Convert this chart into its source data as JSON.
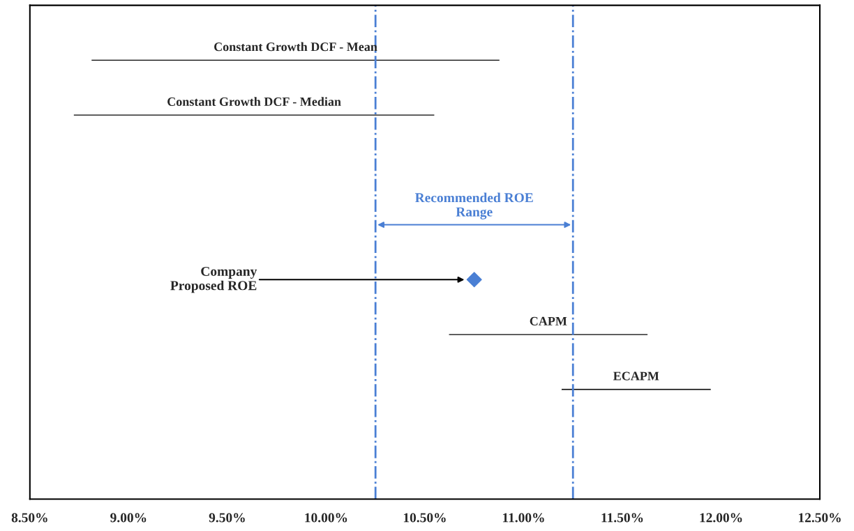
{
  "chart_data": {
    "type": "bar",
    "orientation": "horizontal",
    "categories": [
      "Constant Growth DCF - Mean",
      "Constant Growth DCF - Median",
      null,
      null,
      null,
      "CAPM",
      "ECAPM",
      null
    ],
    "series": [
      {
        "color": "#000000",
        "base": [
          8.81,
          8.72,
          null,
          null,
          null,
          10.62,
          11.19,
          null
        ],
        "values": [
          2.07,
          1.83,
          null,
          null,
          null,
          1.01,
          0.76,
          null
        ]
      },
      {
        "type": "scatter",
        "color": "#4a7fd4",
        "marker": "diamond",
        "values": [
          null,
          null,
          null,
          null,
          10.75,
          null,
          null,
          null
        ]
      }
    ],
    "xlim": [
      8.5,
      12.5
    ],
    "xticks": [
      {
        "value": 8.5,
        "label": "8.50%"
      },
      {
        "value": 9.0,
        "label": "9.00%"
      },
      {
        "value": 9.5,
        "label": "9.50%"
      },
      {
        "value": 10.0,
        "label": "10.00%"
      },
      {
        "value": 10.5,
        "label": "10.50%"
      },
      {
        "value": 11.0,
        "label": "11.00%"
      },
      {
        "value": 11.5,
        "label": "11.50%"
      },
      {
        "value": 12.0,
        "label": "12.00%"
      },
      {
        "value": 12.5,
        "label": "12.50%"
      }
    ],
    "tick_labels": "x",
    "grid": false,
    "legend": false,
    "ref_lines": [
      {
        "axis": "x",
        "value": 10.25,
        "color": "#4a7fd4",
        "line_style": "dashdot"
      },
      {
        "axis": "x",
        "value": 11.25,
        "color": "#4a7fd4",
        "line_style": "dashdot"
      }
    ],
    "annotations": [
      "Recommended ROE\nRange",
      "Company\nProposed ROE"
    ]
  }
}
